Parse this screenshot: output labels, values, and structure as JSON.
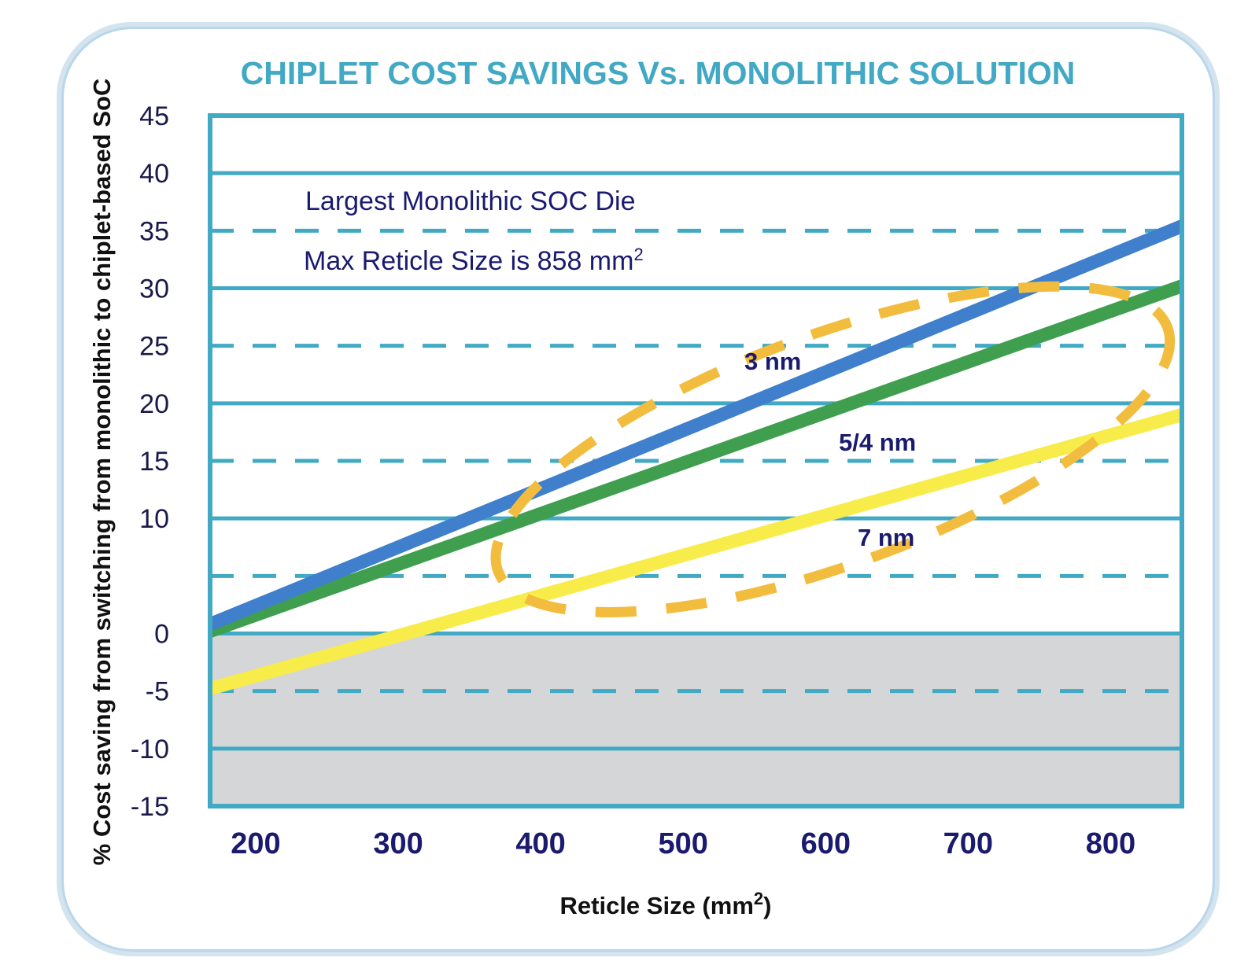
{
  "chart_data": {
    "type": "line",
    "title": "CHIPLET COST SAVINGS Vs. MONOLITHIC SOLUTION",
    "xlabel": "Reticle Size (mm",
    "xlabel_sup": "2",
    "xlabel_end": ")",
    "ylabel": "% Cost saving from switching from monolithic to chiplet-based SoC",
    "x_ticks": [
      "200",
      "300",
      "400",
      "500",
      "600",
      "700",
      "800"
    ],
    "y_ticks": [
      "45",
      "40",
      "35",
      "30",
      "25",
      "20",
      "15",
      "10",
      "0",
      "-5",
      "-10",
      "-15"
    ],
    "x_tick_values": [
      200,
      300,
      400,
      500,
      600,
      700,
      800
    ],
    "y_tick_values": [
      45,
      40,
      35,
      30,
      25,
      20,
      15,
      10,
      0,
      -5,
      -10,
      -15
    ],
    "xlim": [
      168,
      850
    ],
    "ylim": [
      -15,
      45
    ],
    "negative_region": [
      -15,
      0
    ],
    "gridlines_solid": [
      -10,
      0,
      10,
      20,
      30,
      40
    ],
    "gridlines_dashed": [
      -5,
      5,
      15,
      25,
      35
    ],
    "series": [
      {
        "name": "3 nm",
        "color": "#3f7fcc",
        "x": [
          168,
          850
        ],
        "y": [
          0.8,
          35.4
        ]
      },
      {
        "name": "5/4 nm",
        "color": "#3f9f4f",
        "x": [
          168,
          850
        ],
        "y": [
          0.2,
          30.2
        ]
      },
      {
        "name": "7 nm",
        "color": "#f7ec4a",
        "x": [
          168,
          850
        ],
        "y": [
          -4.8,
          19.0
        ]
      }
    ],
    "annotations": {
      "line1": "Largest Monolithic SOC Die",
      "line2": "Max Reticle Size is 858 mm",
      "line2_sup": "2"
    },
    "highlight_ellipse": {
      "color": "#f2bd3e",
      "center_x": 605,
      "center_y": 16,
      "rx_data": 250,
      "ry_data": 10
    }
  }
}
